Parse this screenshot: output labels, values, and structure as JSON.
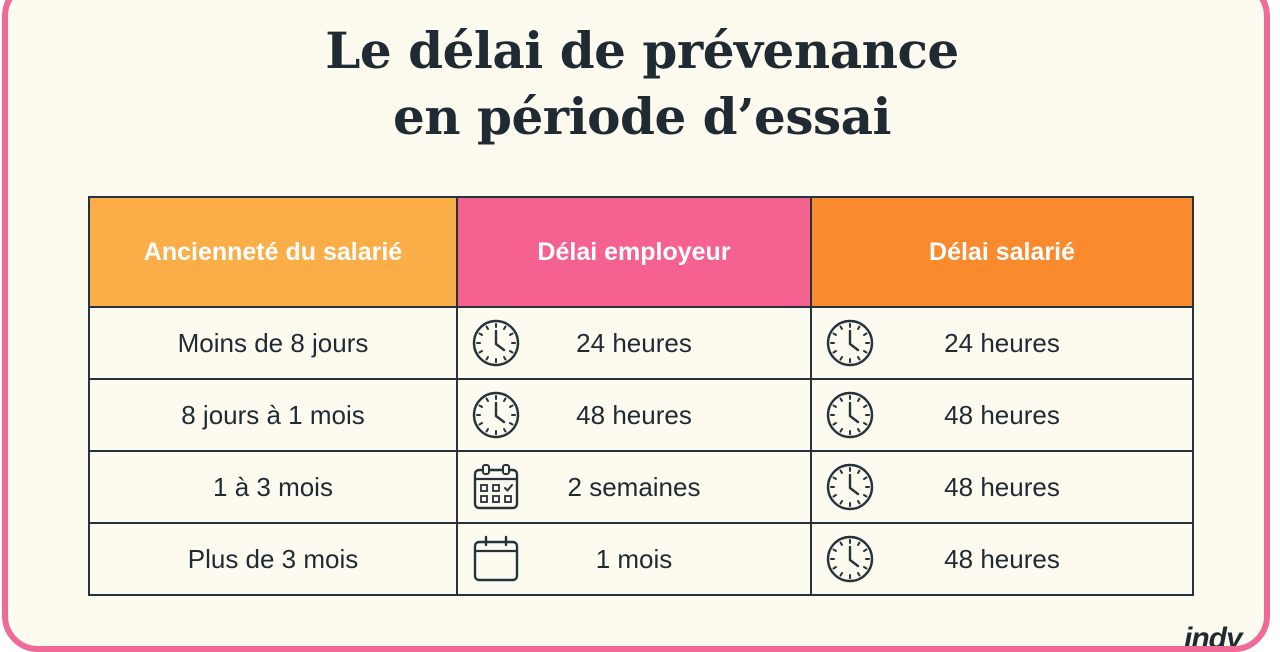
{
  "title": {
    "line1": "Le délai de prévenance",
    "line2": "en période d’essai"
  },
  "table": {
    "headers": [
      "Ancienneté du salarié",
      "Délai employeur",
      "Délai salarié"
    ],
    "header_colors": [
      "#fbad47",
      "#f6628f",
      "#f98a2e"
    ],
    "rows": [
      {
        "seniority": "Moins de 8 jours",
        "employer": "24 heures",
        "employer_icon": "clock-icon",
        "employee": "24 heures",
        "employee_icon": "clock-icon"
      },
      {
        "seniority": "8 jours à 1 mois",
        "employer": "48 heures",
        "employer_icon": "clock-icon",
        "employee": "48 heures",
        "employee_icon": "clock-icon"
      },
      {
        "seniority": "1 à 3 mois",
        "employer": "2 semaines",
        "employer_icon": "calendar-grid-icon",
        "employee": "48 heures",
        "employee_icon": "clock-icon"
      },
      {
        "seniority": "Plus de 3 mois",
        "employer": "1 mois",
        "employer_icon": "calendar-blank-icon",
        "employee": "48 heures",
        "employee_icon": "clock-icon"
      }
    ]
  },
  "brand": {
    "logo": "indy",
    "border_color": "#f06a97",
    "background": "#fdfaf0"
  }
}
